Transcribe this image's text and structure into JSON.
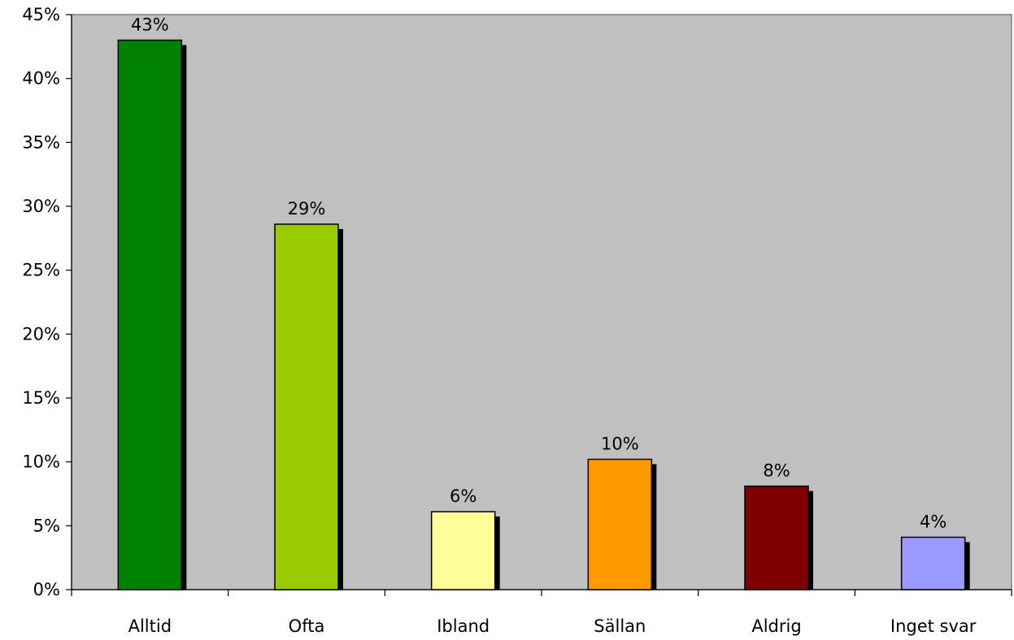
{
  "chart_data": {
    "type": "bar",
    "categories": [
      "Alltid",
      "Ofta",
      "Ibland",
      "Sällan",
      "Aldrig",
      "Inget svar"
    ],
    "values": [
      43,
      28.6,
      6.1,
      10.2,
      8.1,
      4.1
    ],
    "data_labels": [
      "43%",
      "29%",
      "6%",
      "10%",
      "8%",
      "4%"
    ],
    "colors": [
      "#008000",
      "#99cc00",
      "#ffff99",
      "#ff9900",
      "#800000",
      "#9999ff"
    ],
    "ylim": [
      0,
      45
    ],
    "y_ticks": [
      0,
      5,
      10,
      15,
      20,
      25,
      30,
      35,
      40,
      45
    ],
    "y_tick_labels": [
      "0%",
      "5%",
      "10%",
      "15%",
      "20%",
      "25%",
      "30%",
      "35%",
      "40%",
      "45%"
    ],
    "plot_background": "#c0c0c0",
    "grid": false,
    "legend": "none"
  }
}
